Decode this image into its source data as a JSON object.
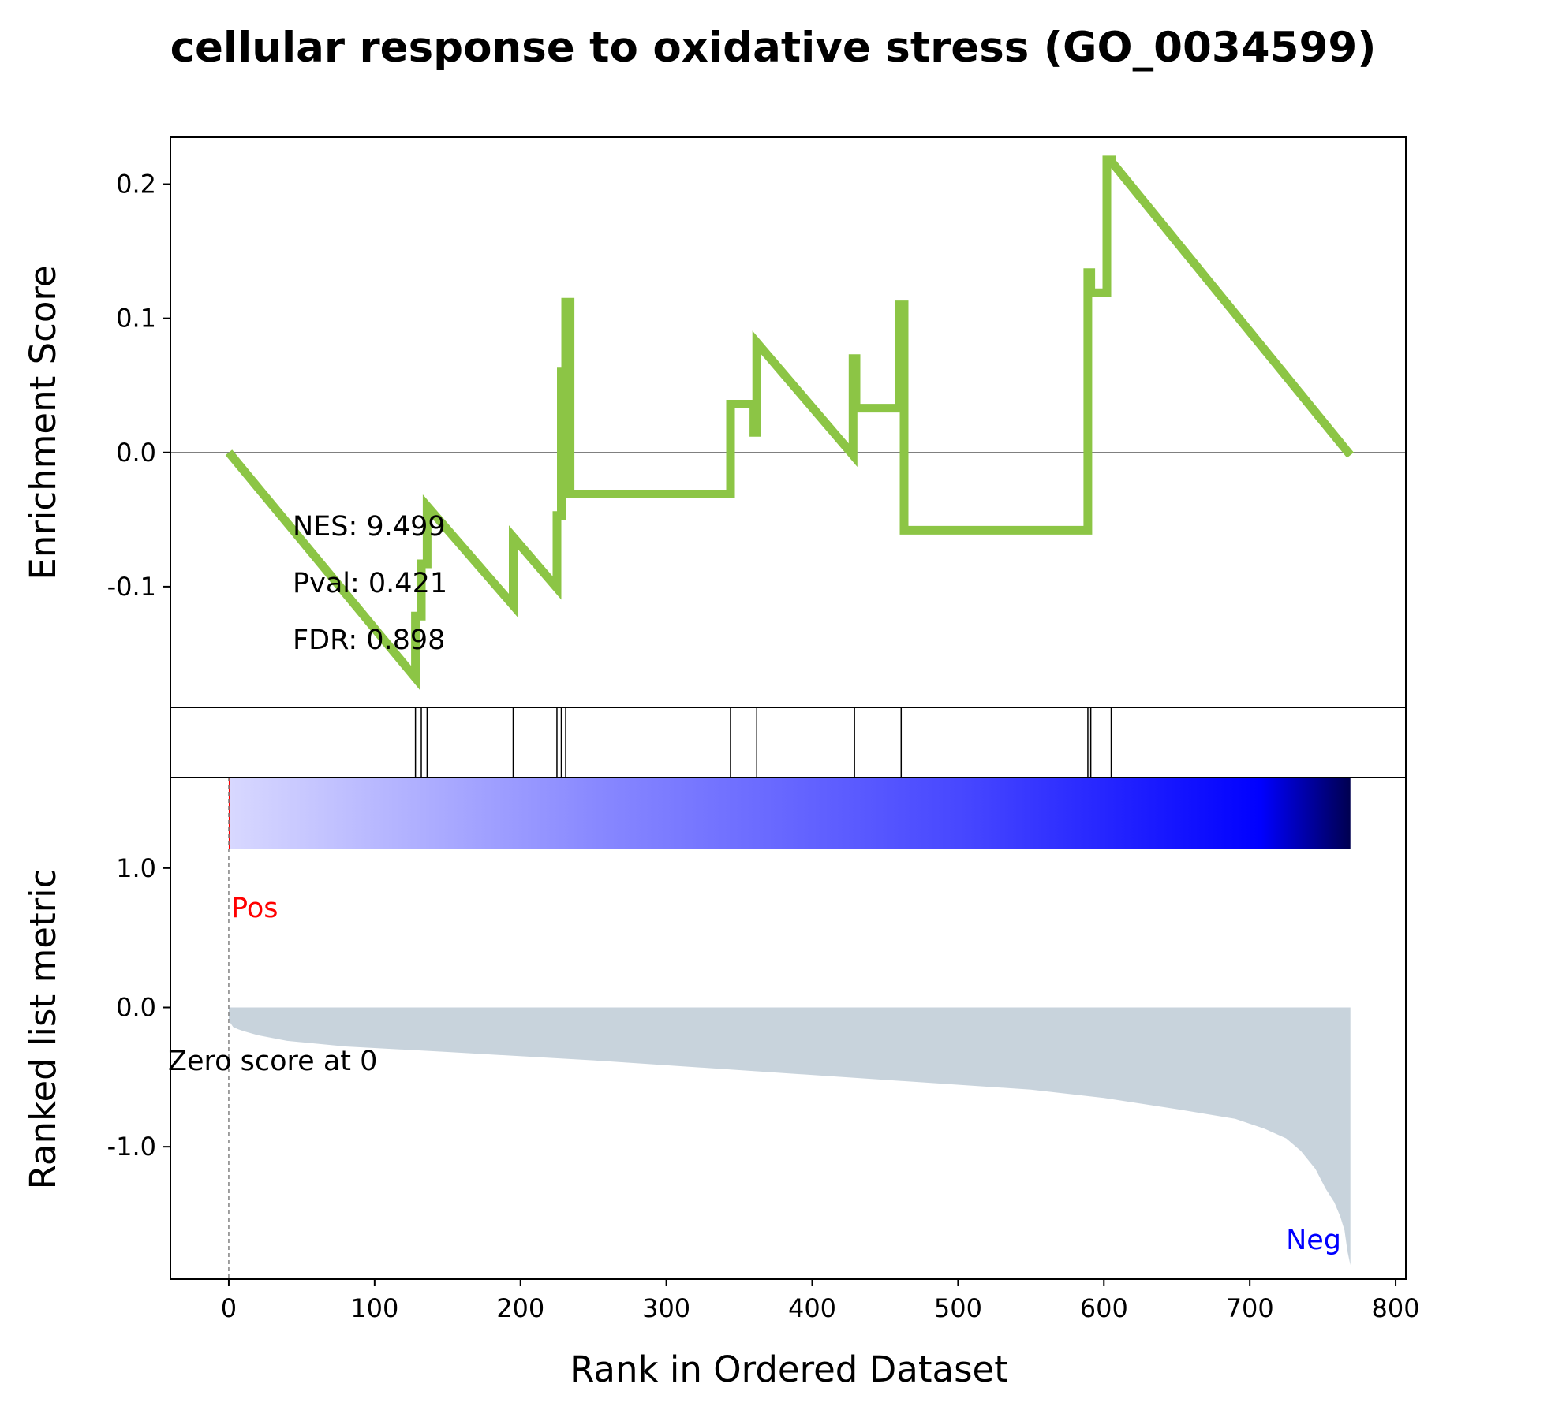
{
  "chart_data": {
    "type": "line",
    "title": "cellular response to oxidative stress (GO_0034599)",
    "xlabel": "Rank in Ordered Dataset",
    "xlim": [
      -40,
      807
    ],
    "x_ticks": [
      0,
      100,
      200,
      300,
      400,
      500,
      600,
      700,
      800
    ],
    "line_color": "#8cc545",
    "es_panel": {
      "ylabel": "Enrichment Score",
      "ylim": [
        -0.19,
        0.235
      ],
      "y_ticks": [
        0.2,
        0.1,
        0.0,
        -0.1
      ],
      "y_tick_labels": [
        "0.2",
        "0.1",
        "0.0",
        "-0.1"
      ],
      "zero_line": true,
      "running_es": {
        "x": [
          0,
          128,
          128,
          132,
          132,
          136,
          136,
          195,
          195,
          225,
          225,
          228,
          228,
          231,
          231,
          234,
          234,
          344,
          344,
          360,
          360,
          362,
          362,
          428,
          428,
          430,
          430,
          460,
          460,
          463,
          463,
          589,
          589,
          591,
          591,
          602,
          602,
          605,
          605,
          769
        ],
        "y": [
          0.0,
          -0.168,
          -0.122,
          -0.122,
          -0.083,
          -0.083,
          -0.04,
          -0.114,
          -0.063,
          -0.101,
          -0.047,
          -0.047,
          0.06,
          0.06,
          0.112,
          0.112,
          -0.031,
          -0.031,
          0.036,
          0.036,
          0.015,
          0.015,
          0.082,
          -0.002,
          0.07,
          0.07,
          0.033,
          0.033,
          0.11,
          0.11,
          -0.058,
          -0.058,
          0.134,
          0.134,
          0.119,
          0.119,
          0.218,
          0.218,
          0.217,
          -0.002
        ]
      },
      "stats": [
        "NES: 9.499",
        "Pval: 0.421",
        "FDR: 0.898"
      ]
    },
    "hits": [
      128,
      132,
      136,
      195,
      225,
      228,
      231,
      344,
      362,
      429,
      461,
      589,
      591,
      605
    ],
    "ranked_panel": {
      "ylabel": "Ranked list metric",
      "ylim": [
        -1.95,
        1.65
      ],
      "y_ticks": [
        1.0,
        0.0,
        -1.0
      ],
      "y_tick_labels": [
        "1.0",
        "0.0",
        "-1.0"
      ],
      "fill_color": "#c8d3dc",
      "metric": {
        "x": [
          0,
          1,
          3,
          6,
          10,
          20,
          40,
          80,
          150,
          250,
          350,
          450,
          550,
          600,
          650,
          690,
          710,
          725,
          735,
          745,
          752,
          758,
          762,
          765,
          767,
          769
        ],
        "y": [
          -0.08,
          -0.11,
          -0.14,
          -0.155,
          -0.17,
          -0.2,
          -0.24,
          -0.28,
          -0.32,
          -0.38,
          -0.45,
          -0.52,
          -0.59,
          -0.65,
          -0.73,
          -0.8,
          -0.87,
          -0.94,
          -1.03,
          -1.16,
          -1.3,
          -1.4,
          -1.5,
          -1.6,
          -1.75,
          -1.85
        ]
      },
      "pos_label": "Pos",
      "neg_label": "Neg",
      "pos_color": "#ff0000",
      "neg_color": "#0000ff",
      "zero_score_text": "Zero score at 0",
      "zero_score_x": 0,
      "color_bar": {
        "stops": [
          "#d8d8ff",
          "#8888ff",
          "#4646ff",
          "#0000ff",
          "#000050"
        ]
      }
    }
  }
}
